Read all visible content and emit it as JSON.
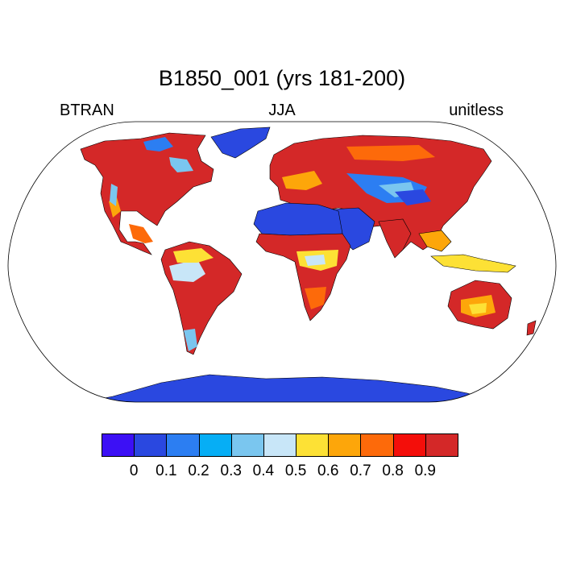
{
  "figure": {
    "title": "B1850_001 (yrs 181-200)",
    "left_label": "BTRAN",
    "center_label": "JJA",
    "right_label": "unitless"
  },
  "colorbar": {
    "colors": [
      "#3c10f5",
      "#2a48e0",
      "#2c7ef2",
      "#06aef5",
      "#7ac6ef",
      "#c8e6f8",
      "#fde135",
      "#fda60a",
      "#fd6a0a",
      "#f40e0a",
      "#d42828"
    ],
    "labels": [
      "0",
      "0.1",
      "0.2",
      "0.3",
      "0.4",
      "0.5",
      "0.6",
      "0.7",
      "0.8",
      "0.9"
    ]
  },
  "map": {
    "projection": "Robinson",
    "land_outline": "#000000",
    "ocean_color": "#ffffff"
  }
}
